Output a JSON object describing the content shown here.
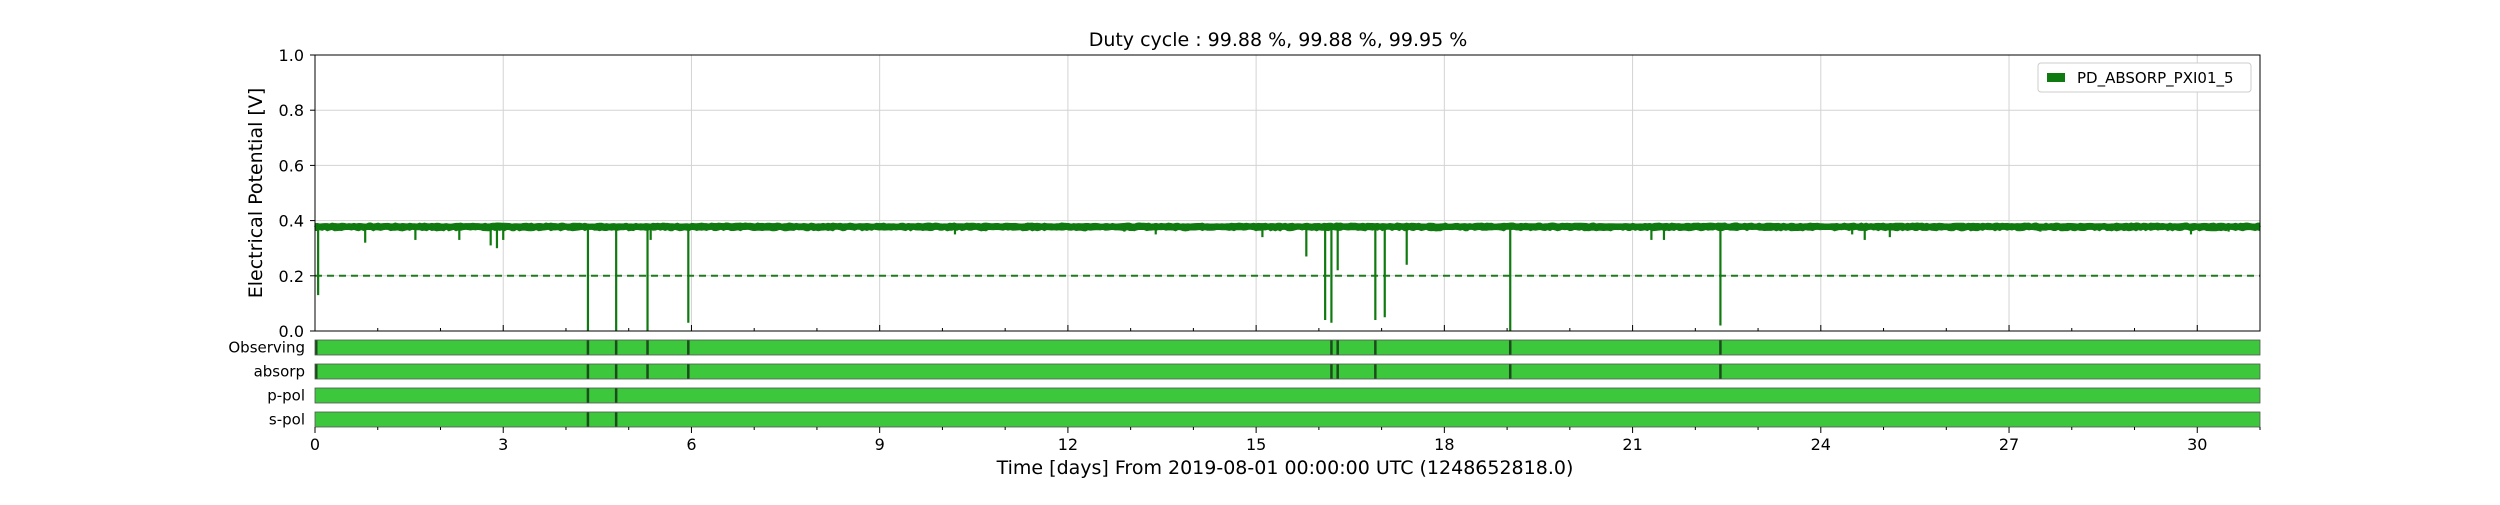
{
  "colors": {
    "signal": "#0f7a0f",
    "segment_fill": "#3cc73c",
    "segment_gap": "#1a4d1a",
    "threshold": "#1f7a1f",
    "grid": "#d3d3d3",
    "axes": "#000000"
  },
  "chart_data": {
    "type": "line",
    "title": "Duty cycle : 99.88 %, 99.88 %, 99.95 %",
    "xlabel": "Time [days] From 2019-08-01 00:00:00 UTC (1248652818.0)",
    "ylabel": "Electrical Potential [V]",
    "xlim": [
      0,
      31
    ],
    "ylim": [
      0,
      1
    ],
    "xticks": [
      0,
      3,
      6,
      9,
      12,
      15,
      18,
      21,
      24,
      27,
      30
    ],
    "yticks": [
      0.0,
      0.2,
      0.4,
      0.6,
      0.8,
      1.0
    ],
    "grid": true,
    "legend": {
      "position": "top-right",
      "entries": [
        "PD_ABSORP_PXI01_5"
      ]
    },
    "series": [
      {
        "name": "PD_ABSORP_PXI01_5",
        "baseline": 0.38,
        "x": [
          0,
          0.05,
          0.1,
          0.8,
          1.6,
          2.3,
          2.8,
          2.9,
          3.0,
          4.35,
          4.8,
          5.3,
          5.35,
          5.95,
          10.2,
          12.9,
          13.4,
          15.1,
          15.8,
          16.1,
          16.2,
          16.3,
          16.9,
          17.05,
          17.4,
          19.05,
          21.3,
          21.5,
          22.4,
          24.5,
          24.7,
          25.1,
          27.5,
          29.9,
          30.5,
          31
        ],
        "y": [
          0.38,
          0.13,
          0.38,
          0.32,
          0.33,
          0.33,
          0.31,
          0.3,
          0.33,
          0.0,
          0.0,
          0.0,
          0.33,
          0.03,
          0.35,
          0.36,
          0.35,
          0.34,
          0.27,
          0.04,
          0.03,
          0.22,
          0.04,
          0.05,
          0.24,
          0.0,
          0.33,
          0.33,
          0.02,
          0.35,
          0.33,
          0.34,
          0.36,
          0.35,
          0.36,
          0.38
        ]
      }
    ],
    "threshold": {
      "y": 0.2,
      "style": "dashed"
    },
    "segments": {
      "labels": [
        "Observing",
        "absorp",
        "p-pol",
        "s-pol"
      ],
      "gaps": [
        [
          0.02,
          4.35,
          4.8,
          5.3,
          5.95,
          16.2,
          16.3,
          16.9,
          19.05,
          22.4
        ],
        [
          0.02,
          4.35,
          4.8,
          5.3,
          5.95,
          16.2,
          16.3,
          16.9,
          19.05,
          22.4
        ],
        [
          4.35,
          4.8
        ],
        [
          4.35,
          4.8
        ]
      ]
    }
  }
}
